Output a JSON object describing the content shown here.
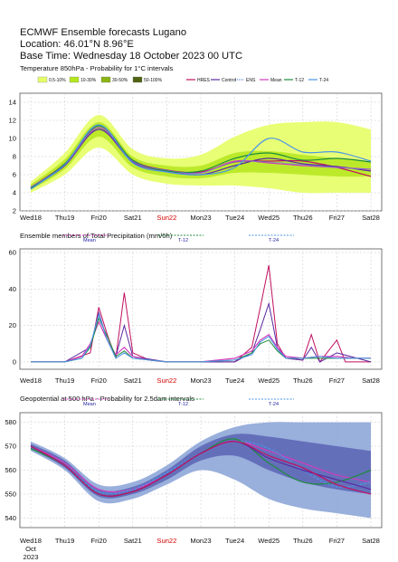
{
  "header": {
    "title": "ECMWF Ensemble forecasts Lugano",
    "location": "Location:  46.01°N 8.96°E",
    "base_time": "Base Time: Wednesday 18 October 2023 00 UTC"
  },
  "x_axis": {
    "ticks": [
      "Wed18",
      "Thu19",
      "Fri20",
      "Sat21",
      "Sun22",
      "Mon23",
      "Tue24",
      "Wed25",
      "Thu26",
      "Fri27",
      "Sat28"
    ],
    "highlight_tick": "Sun22",
    "highlight_color": "#d40000",
    "month_label": "Oct",
    "year_label": "2023"
  },
  "colors": {
    "prob_0_10": "#e6ff66",
    "prob_10_30": "#b4e61e",
    "prob_30_50": "#8cb414",
    "prob_50_100": "#506414",
    "hres": "#c01060",
    "control": "#5a2aa0",
    "ens": "#5a8cdc",
    "mean": "#d23cbe",
    "t12": "#1e8c3c",
    "t24": "#4b96e6",
    "geo_prob": "#8ea6d8",
    "geo_prob_dark": "#5a64b4"
  },
  "chart_data": [
    {
      "type": "line",
      "title": "Temperature 850hPa - Probability for 1°C intervals",
      "legend": [
        "0.5-10%",
        "10-30%",
        "30-50%",
        "50-100%",
        "HRES",
        "Control",
        "ENS",
        "Mean",
        "T-12",
        "T-24"
      ],
      "legend_placement": "top",
      "x": [
        "Wed18",
        "Thu19",
        "Fri20",
        "Sat21",
        "Sun22",
        "Mon23",
        "Tue24",
        "Wed25",
        "Thu26",
        "Fri27",
        "Sat28"
      ],
      "ylim": [
        2,
        15
      ],
      "yticks": [
        2,
        4,
        6,
        8,
        10,
        12,
        14
      ],
      "grid": true,
      "series": [
        {
          "name": "HRES",
          "values": [
            4.6,
            7.2,
            11.2,
            7.6,
            6.5,
            6.3,
            7.4,
            7.5,
            7.5,
            6.8,
            5.8
          ]
        },
        {
          "name": "Control",
          "values": [
            4.5,
            7.0,
            11.0,
            7.4,
            6.4,
            6.0,
            7.0,
            7.8,
            7.2,
            6.9,
            6.4
          ]
        },
        {
          "name": "Mean",
          "values": [
            4.6,
            7.1,
            11.2,
            7.5,
            6.4,
            6.2,
            7.5,
            7.3,
            7.0,
            6.8,
            6.6
          ]
        },
        {
          "name": "T-12",
          "values": [
            4.5,
            7.2,
            11.4,
            7.6,
            6.4,
            6.4,
            7.8,
            8.4,
            7.6,
            7.8,
            7.4
          ]
        },
        {
          "name": "T-24",
          "values": [
            4.4,
            7.1,
            11.5,
            7.3,
            6.3,
            6.0,
            6.8,
            10.0,
            8.5,
            8.5,
            7.5
          ]
        },
        {
          "name": "ENS",
          "values": [
            4.6,
            7.1,
            11.2,
            7.5,
            6.5,
            6.2,
            7.4,
            7.4,
            7.1,
            6.8,
            6.6
          ]
        }
      ],
      "band_outer": {
        "low": [
          4.0,
          6.0,
          9.0,
          6.0,
          5.0,
          4.8,
          4.8,
          4.5,
          4.0,
          4.0,
          4.0
        ],
        "high": [
          5.2,
          8.4,
          12.6,
          8.8,
          7.8,
          8.2,
          10.2,
          11.5,
          11.8,
          11.8,
          11.0
        ]
      },
      "band_inner": {
        "low": [
          4.3,
          6.6,
          10.2,
          6.8,
          5.8,
          5.6,
          6.2,
          6.2,
          6.0,
          5.8,
          5.8
        ],
        "high": [
          4.9,
          7.7,
          11.8,
          8.0,
          7.0,
          7.0,
          8.4,
          8.6,
          8.2,
          7.8,
          7.4
        ]
      }
    },
    {
      "type": "line",
      "title": "Ensemble members of Total Precipitation (mm/6h)",
      "legend": [
        "Mean",
        "T-12",
        "T-24"
      ],
      "legend_placement": "top",
      "x": [
        "Wed18",
        "Thu19",
        "Fri20",
        "Sat21",
        "Sun22",
        "Mon23",
        "Tue24",
        "Wed25",
        "Thu26",
        "Fri27",
        "Sat28"
      ],
      "ylim": [
        -4,
        62
      ],
      "yticks": [
        0,
        20,
        40,
        60
      ],
      "grid": true,
      "members": [
        {
          "name": "HRES",
          "points": [
            [
              0,
              0
            ],
            [
              1,
              0
            ],
            [
              1.75,
              5
            ],
            [
              2,
              30
            ],
            [
              2.25,
              15
            ],
            [
              2.5,
              2
            ],
            [
              2.75,
              38
            ],
            [
              3,
              5
            ],
            [
              3.5,
              1
            ],
            [
              4,
              0
            ],
            [
              5,
              0
            ],
            [
              6,
              0
            ],
            [
              6.5,
              8
            ],
            [
              6.75,
              30
            ],
            [
              7,
              53
            ],
            [
              7.25,
              10
            ],
            [
              7.5,
              2
            ],
            [
              8,
              1
            ],
            [
              8.25,
              15
            ],
            [
              8.5,
              0
            ],
            [
              9,
              12
            ],
            [
              9.25,
              0
            ],
            [
              10,
              0
            ]
          ]
        },
        {
          "name": "Control",
          "points": [
            [
              0,
              0
            ],
            [
              1,
              0
            ],
            [
              1.75,
              8
            ],
            [
              2,
              27
            ],
            [
              2.25,
              12
            ],
            [
              2.5,
              3
            ],
            [
              2.75,
              20
            ],
            [
              3,
              3
            ],
            [
              4,
              0
            ],
            [
              5,
              0
            ],
            [
              6,
              0
            ],
            [
              6.5,
              5
            ],
            [
              6.75,
              18
            ],
            [
              7,
              32
            ],
            [
              7.25,
              8
            ],
            [
              7.5,
              2
            ],
            [
              8,
              1
            ],
            [
              8.25,
              8
            ],
            [
              8.5,
              0
            ],
            [
              9,
              5
            ],
            [
              10,
              0
            ]
          ]
        },
        {
          "name": "Mean",
          "points": [
            [
              0,
              0
            ],
            [
              1,
              0
            ],
            [
              1.5,
              3
            ],
            [
              1.75,
              10
            ],
            [
              2,
              22
            ],
            [
              2.25,
              12
            ],
            [
              2.5,
              4
            ],
            [
              2.75,
              8
            ],
            [
              3,
              3
            ],
            [
              3.5,
              1
            ],
            [
              4,
              0
            ],
            [
              5,
              0
            ],
            [
              5.5,
              1
            ],
            [
              6,
              2
            ],
            [
              6.5,
              6
            ],
            [
              6.75,
              12
            ],
            [
              7,
              15
            ],
            [
              7.25,
              8
            ],
            [
              7.5,
              3
            ],
            [
              8,
              2
            ],
            [
              8.5,
              3
            ],
            [
              9,
              3
            ],
            [
              9.5,
              2
            ],
            [
              10,
              2
            ]
          ]
        },
        {
          "name": "T-12",
          "points": [
            [
              0,
              0
            ],
            [
              1,
              0
            ],
            [
              1.5,
              2
            ],
            [
              1.75,
              8
            ],
            [
              2,
              24
            ],
            [
              2.25,
              14
            ],
            [
              2.5,
              3
            ],
            [
              2.75,
              6
            ],
            [
              3,
              2
            ],
            [
              4,
              0
            ],
            [
              5,
              0
            ],
            [
              6,
              1
            ],
            [
              6.5,
              5
            ],
            [
              6.75,
              10
            ],
            [
              7,
              12
            ],
            [
              7.25,
              6
            ],
            [
              7.5,
              2
            ],
            [
              8,
              2
            ],
            [
              8.5,
              2
            ],
            [
              9,
              2
            ],
            [
              10,
              2
            ]
          ]
        },
        {
          "name": "T-24",
          "points": [
            [
              0,
              0
            ],
            [
              1,
              0
            ],
            [
              1.5,
              2
            ],
            [
              1.75,
              9
            ],
            [
              2,
              26
            ],
            [
              2.25,
              12
            ],
            [
              2.5,
              2
            ],
            [
              2.75,
              5
            ],
            [
              3,
              2
            ],
            [
              4,
              0
            ],
            [
              5,
              0
            ],
            [
              6,
              1
            ],
            [
              6.5,
              4
            ],
            [
              6.75,
              11
            ],
            [
              7,
              14
            ],
            [
              7.25,
              7
            ],
            [
              7.5,
              2
            ],
            [
              8,
              2
            ],
            [
              8.5,
              3
            ],
            [
              9,
              2
            ],
            [
              10,
              2
            ]
          ]
        }
      ]
    },
    {
      "type": "line",
      "title": "Geopotential at 500 hPa - Probability for 2.5dam intervals",
      "legend": [
        "Mean",
        "T-12",
        "T-24"
      ],
      "legend_placement": "top",
      "x": [
        "Wed18",
        "Thu19",
        "Fri20",
        "Sat21",
        "Sun22",
        "Mon23",
        "Tue24",
        "Wed25",
        "Thu26",
        "Fri27",
        "Sat28"
      ],
      "ylim": [
        536,
        584
      ],
      "yticks": [
        540,
        550,
        560,
        570,
        580
      ],
      "grid": true,
      "series": [
        {
          "name": "Mean",
          "values": [
            570,
            563,
            552,
            552,
            558,
            567,
            572,
            568,
            563,
            558,
            555
          ]
        },
        {
          "name": "T-12",
          "values": [
            569,
            562,
            550,
            551,
            558,
            567,
            573,
            563,
            555,
            555,
            560
          ]
        },
        {
          "name": "T-24",
          "values": [
            570,
            562,
            551,
            552,
            559,
            567,
            572,
            569,
            560,
            553,
            555
          ]
        },
        {
          "name": "Control",
          "values": [
            570,
            562,
            550,
            551,
            558,
            567,
            572,
            565,
            560,
            556,
            552
          ]
        },
        {
          "name": "HRES",
          "values": [
            570,
            562,
            550,
            551,
            558,
            567,
            572,
            566,
            561,
            554,
            550
          ]
        }
      ],
      "band_outer": {
        "low": [
          568,
          560,
          547,
          548,
          554,
          560,
          556,
          548,
          544,
          542,
          540
        ],
        "high": [
          572,
          565,
          554,
          555,
          562,
          572,
          578,
          580,
          580,
          580,
          580
        ]
      },
      "band_inner": {
        "low": [
          569,
          561,
          549,
          550,
          556,
          564,
          566,
          560,
          555,
          552,
          550
        ],
        "high": [
          571,
          564,
          552,
          553,
          560,
          570,
          575,
          574,
          572,
          570,
          568
        ]
      }
    }
  ]
}
